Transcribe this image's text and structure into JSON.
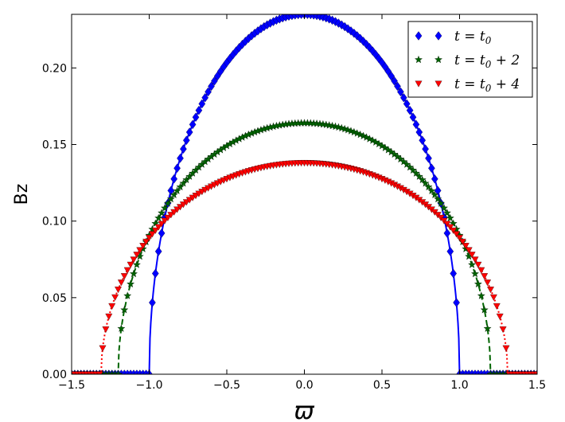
{
  "chart_data": {
    "type": "line",
    "title": "",
    "xlabel": "ϖ",
    "ylabel": "Bz",
    "xlim": [
      -1.5,
      1.5
    ],
    "ylim": [
      0.0,
      0.235
    ],
    "x_ticks": [
      "−1.5",
      "−1.0",
      "−0.5",
      "0.0",
      "0.5",
      "1.0",
      "1.5"
    ],
    "y_ticks": [
      "0.00",
      "0.05",
      "0.10",
      "0.15",
      "0.20"
    ],
    "x_tick_values": [
      -1.5,
      -1.0,
      -0.5,
      0.0,
      0.5,
      1.0,
      1.5
    ],
    "y_tick_values": [
      0.0,
      0.05,
      0.1,
      0.15,
      0.2
    ],
    "grid": false,
    "legend_position": "top-right",
    "series": [
      {
        "name": "t = t0",
        "legend_main": "t = t",
        "legend_sub": "0",
        "legend_suffix": "",
        "color": "#0000ff",
        "marker": "diamond",
        "line_style": "solid",
        "peak": 0.235,
        "radius": 1.0
      },
      {
        "name": "t = t0 + 2",
        "legend_main": "t = t",
        "legend_sub": "0",
        "legend_suffix": " + 2",
        "color": "#006400",
        "marker": "star",
        "line_style": "dashed",
        "peak": 0.164,
        "radius": 1.2
      },
      {
        "name": "t = t0 + 4",
        "legend_main": "t = t",
        "legend_sub": "0",
        "legend_suffix": " + 4",
        "color": "#ff0000",
        "marker": "triangle-down",
        "line_style": "dotted",
        "peak": 0.138,
        "radius": 1.31
      }
    ]
  }
}
